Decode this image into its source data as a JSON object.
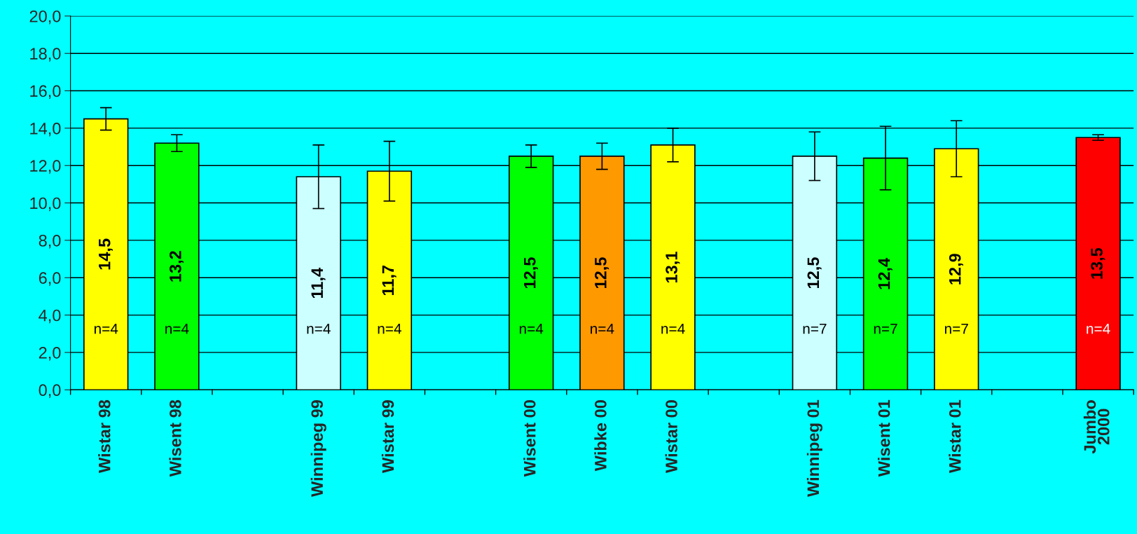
{
  "chart_data": {
    "type": "bar",
    "categories": [
      "Wistar 98",
      "Wisent 98",
      null,
      "Winnipeg 99",
      "Wistar 99",
      null,
      "Wisent 00",
      "Wibke 00",
      "Wistar 00",
      null,
      "Winnipeg 01",
      "Wisent 01",
      "Wistar 01",
      null,
      "Jumbo\n2000"
    ],
    "values": [
      14.5,
      13.2,
      null,
      11.4,
      11.7,
      null,
      12.5,
      12.5,
      13.1,
      null,
      12.5,
      12.4,
      12.9,
      null,
      13.5
    ],
    "colors": [
      "#ffff00",
      "#00ff00",
      null,
      "#ccffff",
      "#ffff00",
      null,
      "#00ff00",
      "#ff9900",
      "#ffff00",
      null,
      "#ccffff",
      "#00ff00",
      "#ffff00",
      null,
      "#ff0000"
    ],
    "errors": [
      0.6,
      0.45,
      null,
      1.7,
      1.6,
      null,
      0.6,
      0.7,
      0.9,
      null,
      1.3,
      1.7,
      1.5,
      null,
      0.15
    ],
    "value_labels": [
      "14,5",
      "13,2",
      null,
      "11,4",
      "11,7",
      null,
      "12,5",
      "12,5",
      "13,1",
      null,
      "12,5",
      "12,4",
      "12,9",
      null,
      "13,5"
    ],
    "ylim": [
      0,
      20
    ],
    "yticks": [
      {
        "value": 0,
        "label": "0,0"
      },
      {
        "value": 2,
        "label": "2,0"
      },
      {
        "value": 4,
        "label": "4,0"
      },
      {
        "value": 6,
        "label": "6,0"
      },
      {
        "value": 8,
        "label": "8,0"
      },
      {
        "value": 10,
        "label": "10,0"
      },
      {
        "value": 12,
        "label": "12,0"
      },
      {
        "value": 14,
        "label": "14,0"
      },
      {
        "value": 16,
        "label": "16,0"
      },
      {
        "value": 18,
        "label": "18,0"
      },
      {
        "value": 20,
        "label": "20,0"
      }
    ],
    "grid": "y",
    "annotations": [
      "n=4",
      "n=4",
      "n=4",
      "n=4",
      "n=4",
      "n=4",
      "n=4",
      "n=7",
      "n=7",
      "n=7",
      "n=4"
    ]
  }
}
